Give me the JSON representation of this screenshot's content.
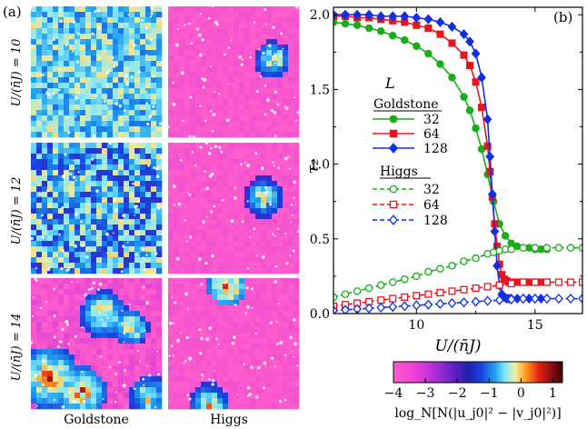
{
  "panel_a": {
    "label": "(a)",
    "row_labels": [
      "U/(n̄J) = 10",
      "U/(n̄J) = 12",
      "U/(n̄J) = 14"
    ],
    "col_labels": [
      "Goldstone",
      "Higgs"
    ]
  },
  "colorbar": {
    "ticks": [
      "−4",
      "−3",
      "−2",
      "−1",
      "0",
      "1"
    ],
    "tick_values": [
      -4,
      -3,
      -2,
      -1,
      0,
      1
    ],
    "range": [
      -4,
      1.3
    ],
    "label": "log_N[N(|u_j0|² − |v_j0|²)]"
  },
  "chart_data": {
    "type": "line",
    "panel_label": "(b)",
    "xlabel": "U/(n̄J)",
    "ylabel": "τ₂",
    "xlim": [
      6.5,
      17
    ],
    "ylim": [
      0,
      2.05
    ],
    "xticks": [
      10,
      15
    ],
    "yticks": [
      0.0,
      0.5,
      1.0,
      1.5,
      2.0
    ],
    "ytick_labels": [
      "0.0",
      "0.5",
      "1.0",
      "1.5",
      "2.0"
    ],
    "legend": {
      "title": "L",
      "group1": "Goldstone",
      "group2": "Higgs",
      "entries": [
        "32",
        "64",
        "128"
      ],
      "placement": "center-left"
    },
    "colors": {
      "L32": "#1aad1a",
      "L64": "#e8141e",
      "L128": "#1030e0"
    },
    "series": [
      {
        "name": "32",
        "group": "Goldstone",
        "color": "#1aad1a",
        "marker": "circle",
        "fill": true,
        "dash": false,
        "x": [
          6.5,
          7,
          7.5,
          8,
          8.5,
          9,
          9.5,
          10,
          10.5,
          11,
          11.5,
          12,
          12.25,
          12.5,
          12.75,
          13,
          13.25,
          13.5,
          13.75,
          14,
          14.25,
          14.5,
          14.75,
          15,
          15.25,
          15.5
        ],
        "y": [
          1.95,
          1.94,
          1.93,
          1.91,
          1.89,
          1.86,
          1.83,
          1.79,
          1.74,
          1.67,
          1.58,
          1.45,
          1.36,
          1.24,
          1.1,
          0.93,
          0.75,
          0.6,
          0.52,
          0.47,
          0.45,
          0.44,
          0.44,
          0.43,
          0.43,
          0.43
        ]
      },
      {
        "name": "64",
        "group": "Goldstone",
        "color": "#e8141e",
        "marker": "square",
        "fill": true,
        "dash": false,
        "x": [
          6.5,
          7,
          7.5,
          8,
          8.5,
          9,
          9.5,
          10,
          10.5,
          11,
          11.5,
          12,
          12.25,
          12.5,
          12.75,
          13,
          13.1,
          13.2,
          13.3,
          13.4,
          13.5,
          13.6,
          13.7,
          13.8,
          13.9,
          14,
          14.25,
          14.5,
          14.75,
          15,
          15.25,
          15.5
        ],
        "y": [
          1.99,
          1.99,
          1.98,
          1.98,
          1.97,
          1.96,
          1.95,
          1.93,
          1.91,
          1.87,
          1.81,
          1.73,
          1.66,
          1.55,
          1.38,
          1.12,
          0.95,
          0.78,
          0.6,
          0.45,
          0.33,
          0.26,
          0.23,
          0.22,
          0.21,
          0.21,
          0.21,
          0.21,
          0.21,
          0.21,
          0.21,
          0.21
        ]
      },
      {
        "name": "128",
        "group": "Goldstone",
        "color": "#1030e0",
        "marker": "diamond",
        "fill": true,
        "dash": false,
        "x": [
          6.5,
          7,
          7.5,
          8,
          8.5,
          9,
          9.5,
          10,
          10.5,
          11,
          11.5,
          12,
          12.25,
          12.5,
          12.75,
          13,
          13.1,
          13.2,
          13.3,
          13.4,
          13.5,
          13.6,
          13.7,
          13.8,
          13.9,
          14,
          14.25,
          14.5,
          14.75,
          15,
          15.25,
          15.5
        ],
        "y": [
          2.0,
          2.0,
          2.0,
          2.0,
          1.99,
          1.99,
          1.99,
          1.98,
          1.97,
          1.95,
          1.92,
          1.87,
          1.82,
          1.74,
          1.58,
          1.3,
          1.05,
          0.8,
          0.55,
          0.32,
          0.19,
          0.13,
          0.11,
          0.1,
          0.1,
          0.1,
          0.1,
          0.1,
          0.1,
          0.1,
          0.1,
          0.1
        ]
      },
      {
        "name": "32",
        "group": "Higgs",
        "color": "#1aad1a",
        "marker": "circle",
        "fill": false,
        "dash": true,
        "x": [
          6.5,
          7,
          7.5,
          8,
          8.5,
          9,
          9.5,
          10,
          10.5,
          11,
          11.5,
          12,
          12.5,
          13,
          13.25,
          13.5,
          13.75,
          14,
          14.5,
          15,
          15.5,
          16,
          16.5,
          17
        ],
        "y": [
          0.11,
          0.13,
          0.15,
          0.17,
          0.19,
          0.21,
          0.23,
          0.25,
          0.28,
          0.3,
          0.32,
          0.35,
          0.37,
          0.4,
          0.41,
          0.42,
          0.43,
          0.43,
          0.44,
          0.44,
          0.44,
          0.44,
          0.44,
          0.44
        ]
      },
      {
        "name": "64",
        "group": "Higgs",
        "color": "#e8141e",
        "marker": "square",
        "fill": false,
        "dash": true,
        "x": [
          6.5,
          7,
          7.5,
          8,
          8.5,
          9,
          9.5,
          10,
          10.5,
          11,
          11.5,
          12,
          12.5,
          13,
          13.5,
          14,
          14.5,
          15,
          15.5,
          16,
          16.5,
          17
        ],
        "y": [
          0.05,
          0.06,
          0.07,
          0.08,
          0.09,
          0.1,
          0.11,
          0.12,
          0.13,
          0.14,
          0.15,
          0.16,
          0.17,
          0.18,
          0.19,
          0.2,
          0.21,
          0.21,
          0.21,
          0.21,
          0.21,
          0.21
        ]
      },
      {
        "name": "128",
        "group": "Higgs",
        "color": "#1030e0",
        "marker": "diamond",
        "fill": false,
        "dash": true,
        "x": [
          6.5,
          7,
          7.5,
          8,
          8.5,
          9,
          9.5,
          10,
          10.5,
          11,
          11.5,
          12,
          12.5,
          13,
          13.5,
          14,
          14.5,
          15,
          15.5,
          16,
          16.5,
          17
        ],
        "y": [
          0.02,
          0.025,
          0.03,
          0.035,
          0.04,
          0.045,
          0.05,
          0.055,
          0.06,
          0.065,
          0.07,
          0.075,
          0.08,
          0.085,
          0.09,
          0.095,
          0.1,
          0.1,
          0.1,
          0.1,
          0.1,
          0.1
        ]
      }
    ]
  }
}
